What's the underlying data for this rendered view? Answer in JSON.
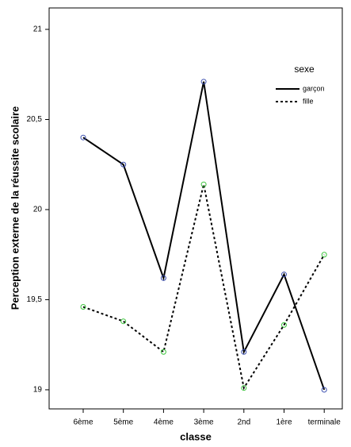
{
  "chart_data": {
    "type": "line",
    "x_label": "classe",
    "y_label": "Perception externe de la réussite scolaire",
    "categories": [
      "6ème",
      "5ème",
      "4ème",
      "3ème",
      "2nd",
      "1ère",
      "terminale"
    ],
    "series": [
      {
        "name": "garçon",
        "color": "#000000",
        "marker_color": "#3b4fb0",
        "dash": "solid",
        "values": [
          20.4,
          20.25,
          19.62,
          20.71,
          19.21,
          19.64,
          19.0
        ]
      },
      {
        "name": "fille",
        "color": "#000000",
        "marker_color": "#3cc43c",
        "dash": "dotted",
        "values": [
          19.46,
          19.38,
          19.21,
          20.14,
          19.01,
          19.36,
          19.75
        ]
      }
    ],
    "legend_title": "sexe",
    "legend": "top-right",
    "ylim": [
      18.894,
      21.119
    ],
    "yticks": [
      19,
      {
        "value": 19.5,
        "label": "19,5"
      },
      20,
      {
        "value": 20.5,
        "label": "20,5"
      },
      21
    ],
    "grid": false
  }
}
